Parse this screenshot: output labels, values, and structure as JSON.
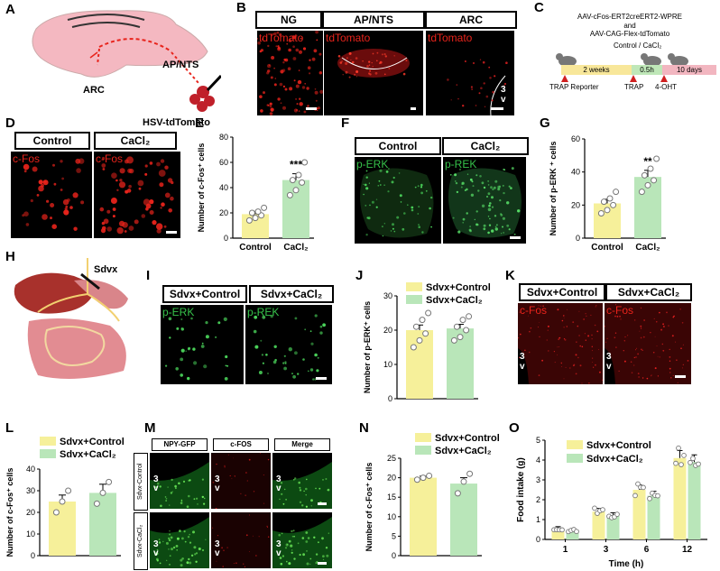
{
  "panels": {
    "A": {
      "label": "A",
      "arc": "ARC",
      "ap": "AP/NTS",
      "hsv": "HSV-tdTomato"
    },
    "B": {
      "label": "B",
      "tabs": [
        "NG",
        "AP/NTS",
        "ARC"
      ],
      "stain": "tdTomato",
      "v": "3",
      "v2": "v"
    },
    "C": {
      "label": "C",
      "line1": "AAV-cFos-ERT2creERT2-WPRE",
      "line2": "and",
      "line3": "AAV-CAG-Flex-tdTomato",
      "treat": "Control / CaCl₂",
      "seg1": "2 weeks",
      "seg2": "0.5h",
      "seg3": "10 days",
      "ev1": "TRAP Reporter",
      "ev2": "TRAP",
      "ev3": "4-OHT"
    },
    "D": {
      "label": "D",
      "tabs": [
        "Control",
        "CaCl₂"
      ],
      "stain": "c-Fos"
    },
    "E": {
      "label": "E",
      "ylabel": "Number of c-Fos⁺ cells",
      "sig": "***"
    },
    "F": {
      "label": "F",
      "tabs": [
        "Control",
        "CaCl₂"
      ],
      "stain1": "p-ERK",
      "stain2": "p-REK"
    },
    "G": {
      "label": "G",
      "ylabel": "Number of p-ERK ⁺ cells",
      "sig": "**"
    },
    "H": {
      "label": "H",
      "sdvx": "Sdvx"
    },
    "I": {
      "label": "I",
      "tabs": [
        "Sdvx+Control",
        "Sdvx+CaCl₂"
      ],
      "stain1": "p-ERK",
      "stain2": "p-REK"
    },
    "J": {
      "label": "J",
      "ylabel": "Number of p-ERK⁺ cells",
      "leg": [
        "Sdvx+Control",
        "Sdvx+CaCl₂"
      ]
    },
    "K": {
      "label": "K",
      "tabs": [
        "Sdvx+Control",
        "Sdvx+CaCl₂"
      ],
      "stain": "c-Fos",
      "v": "3",
      "v2": "v"
    },
    "L": {
      "label": "L",
      "ylabel": "Number of c-Fos⁺ cells",
      "leg": [
        "Sdvx+Control",
        "Sdvx+CaCl₂"
      ]
    },
    "M": {
      "label": "M",
      "tabs": [
        "NPY-GFP",
        "c-FOS",
        "Merge"
      ],
      "rows": [
        "Sdvx-Control",
        "Sdvx-CaCl₂"
      ],
      "v": "3",
      "v2": "v"
    },
    "N": {
      "label": "N",
      "ylabel": "Number of c-Fos⁺ cells",
      "leg": [
        "Sdvx+Control",
        "Sdvx+CaCl₂"
      ]
    },
    "O": {
      "label": "O",
      "ylabel": "Food intake (g)",
      "xlabel": "Time (h)",
      "leg": [
        "Sdvx+Control",
        "Sdvx+CaCl₂"
      ]
    }
  },
  "colors": {
    "yellow": "#f6f09a",
    "green": "#b9e6b9",
    "red": "#e8231b",
    "greenFluor": "#36c24a"
  },
  "chart_data": [
    {
      "id": "E",
      "type": "bar",
      "categories": [
        "Control",
        "CaCl₂"
      ],
      "values": [
        19,
        46
      ],
      "ylim": [
        0,
        80
      ],
      "yticks": [
        0,
        20,
        40,
        60,
        80
      ],
      "points": [
        [
          14,
          16,
          18,
          20,
          21,
          24
        ],
        [
          34,
          38,
          44,
          46,
          50,
          60
        ]
      ],
      "errors": [
        2,
        5
      ]
    },
    {
      "id": "G",
      "type": "bar",
      "categories": [
        "Control",
        "CaCl₂"
      ],
      "values": [
        21,
        37
      ],
      "ylim": [
        0,
        60
      ],
      "yticks": [
        0,
        20,
        40,
        60
      ],
      "points": [
        [
          15,
          17,
          20,
          22,
          24,
          28
        ],
        [
          28,
          32,
          35,
          38,
          42,
          48
        ]
      ],
      "errors": [
        2.5,
        4
      ]
    },
    {
      "id": "J",
      "type": "bar",
      "categories": [
        "Sdvx+Control",
        "Sdvx+CaCl₂"
      ],
      "values": [
        20,
        20.5
      ],
      "ylim": [
        0,
        30
      ],
      "yticks": [
        0,
        10,
        20,
        30
      ],
      "points": [
        [
          15,
          17,
          19,
          21,
          23,
          25
        ],
        [
          17,
          18,
          20,
          21,
          23,
          24
        ]
      ],
      "errors": [
        1.5,
        1.2
      ]
    },
    {
      "id": "L",
      "type": "bar",
      "categories": [
        "Sdvx+Control",
        "Sdvx+CaCl₂"
      ],
      "values": [
        25,
        29
      ],
      "ylim": [
        0,
        40
      ],
      "yticks": [
        0,
        10,
        20,
        30,
        40
      ],
      "points": [
        [
          20,
          25,
          30
        ],
        [
          24,
          29,
          34
        ]
      ],
      "errors": [
        3,
        4
      ]
    },
    {
      "id": "N",
      "type": "bar",
      "categories": [
        "Sdvx+Control",
        "Sdvx+CaCl₂"
      ],
      "values": [
        20,
        18.5
      ],
      "ylim": [
        0,
        25
      ],
      "yticks": [
        0,
        5,
        10,
        15,
        20,
        25
      ],
      "points": [
        [
          19.5,
          20,
          20.5
        ],
        [
          16,
          19,
          21
        ]
      ],
      "errors": [
        0.4,
        1.5
      ]
    },
    {
      "id": "O",
      "type": "bar",
      "categories": [
        "1",
        "3",
        "6",
        "12"
      ],
      "series": [
        {
          "name": "Sdvx+Control",
          "values": [
            0.55,
            1.4,
            2.5,
            4.1
          ]
        },
        {
          "name": "Sdvx+CaCl₂",
          "values": [
            0.45,
            1.2,
            2.2,
            3.9
          ]
        }
      ],
      "ylim": [
        0,
        5
      ],
      "yticks": [
        0,
        1,
        2,
        3,
        4,
        5
      ]
    }
  ]
}
